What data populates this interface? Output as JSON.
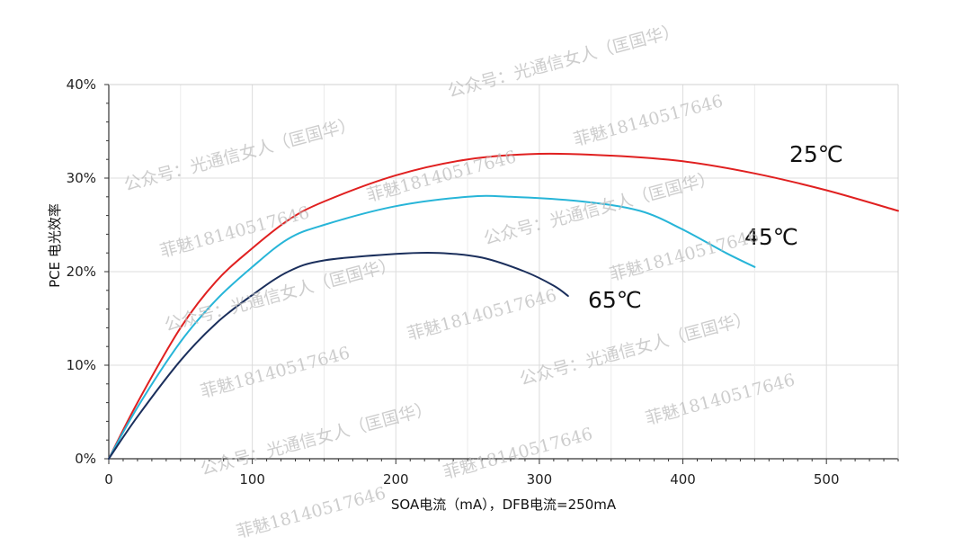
{
  "chart_data": {
    "type": "line",
    "xlabel": "SOA电流（mA），DFB电流=250mA",
    "ylabel": "PCE 电光效率",
    "xlim": [
      0,
      550
    ],
    "ylim": [
      0,
      40
    ],
    "x_ticks": [
      "0",
      "100",
      "200",
      "300",
      "400",
      "500"
    ],
    "y_ticks": [
      "0%",
      "10%",
      "20%",
      "30%",
      "40%"
    ],
    "grid": true,
    "series": [
      {
        "name": "25℃",
        "color": "#e02020",
        "x": [
          0,
          20,
          50,
          75,
          100,
          125,
          150,
          200,
          250,
          300,
          350,
          400,
          450,
          500,
          550
        ],
        "y": [
          0,
          6,
          14,
          19,
          22.5,
          25.5,
          27.5,
          30.3,
          32,
          32.6,
          32.4,
          31.8,
          30.5,
          28.7,
          26.5
        ]
      },
      {
        "name": "45℃",
        "color": "#27b5d8",
        "x": [
          0,
          20,
          50,
          75,
          100,
          125,
          150,
          200,
          250,
          280,
          330,
          370,
          400,
          430,
          450
        ],
        "y": [
          0,
          5.5,
          12.5,
          17,
          20.5,
          23.5,
          25,
          27,
          28,
          28,
          27.5,
          26.5,
          24.5,
          22,
          20.5
        ]
      },
      {
        "name": "65℃",
        "color": "#1b2f5c",
        "x": [
          0,
          20,
          50,
          75,
          100,
          125,
          150,
          200,
          230,
          260,
          290,
          310,
          320
        ],
        "y": [
          0,
          4.5,
          10.5,
          14.5,
          17.5,
          20,
          21.2,
          21.9,
          22,
          21.5,
          20,
          18.5,
          17.4
        ]
      }
    ]
  },
  "watermarks": [
    "公众号：光通信女人（匡国华）",
    "菲魅18140517646"
  ]
}
